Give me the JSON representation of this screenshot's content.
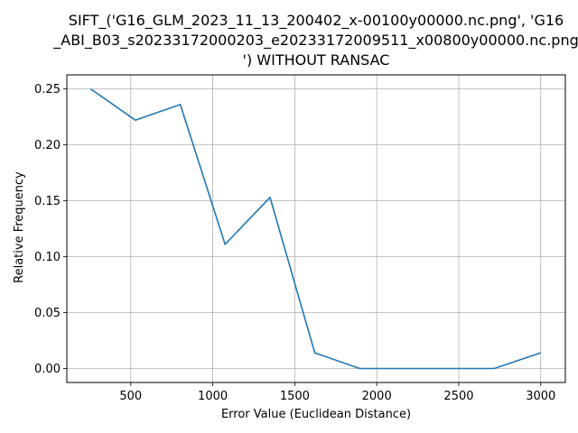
{
  "chart_data": {
    "type": "line",
    "title_lines": [
      "SIFT_('G16_GLM_2023_11_13_200402_x-00100y00000.nc.png', 'G16",
      "_ABI_B03_s20233172000203_e20233172009511_x00800y00000.nc.png",
      "') WITHOUT RANSAC"
    ],
    "xlabel": "Error Value (Euclidean Distance)",
    "ylabel": "Relative Frequency",
    "xlim": [
      110,
      3150
    ],
    "ylim": [
      -0.0125,
      0.2625
    ],
    "xticks": [
      500,
      1000,
      1500,
      2000,
      2500,
      3000
    ],
    "yticks": [
      0.0,
      0.05,
      0.1,
      0.15,
      0.2,
      0.25
    ],
    "xtick_labels": [
      "500",
      "1000",
      "1500",
      "2000",
      "2500",
      "3000"
    ],
    "ytick_labels": [
      "0.00",
      "0.05",
      "0.10",
      "0.15",
      "0.20",
      "0.25"
    ],
    "grid": true,
    "line_color": "#1f77b4",
    "series": [
      {
        "name": "relative frequency",
        "x": [
          255,
          528,
          802,
          1075,
          1349,
          1622,
          1896,
          2169,
          2443,
          2716,
          3000
        ],
        "y": [
          0.25,
          0.222,
          0.236,
          0.111,
          0.153,
          0.014,
          0.0,
          0.0,
          0.0,
          0.0,
          0.014
        ]
      }
    ]
  }
}
